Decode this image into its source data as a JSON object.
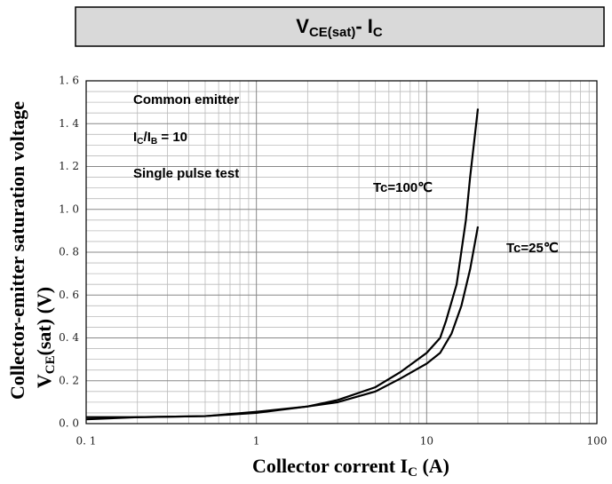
{
  "chart_data": {
    "type": "line",
    "title": [
      "V",
      "CE(sat)",
      "- I",
      "C"
    ],
    "ylabel": {
      "line1": "Collector-emitter saturation voltage",
      "line2": [
        "V",
        "CE",
        "(sat) (V)"
      ]
    },
    "xlabel": [
      "Collector corrent I",
      "C",
      " (A)"
    ],
    "annotations": [
      {
        "text": "Common emitter"
      },
      {
        "parts": [
          "I",
          "C",
          "/I",
          "B",
          " = 10"
        ]
      },
      {
        "text": "Single pulse test"
      }
    ],
    "xscale": "log",
    "xlim": [
      0.1,
      100
    ],
    "xticks": [
      {
        "value": 0.1,
        "label": "0. 1"
      },
      1,
      10,
      100
    ],
    "ylim": [
      0,
      1.6
    ],
    "yticks": [
      {
        "value": 0,
        "label": "0. 0"
      },
      {
        "value": 0.2,
        "label": "0. 2"
      },
      {
        "value": 0.4,
        "label": "0. 4"
      },
      {
        "value": 0.6,
        "label": "0. 6"
      },
      {
        "value": 0.8,
        "label": "0. 8"
      },
      {
        "value": 1.0,
        "label": "1. 0"
      },
      {
        "value": 1.2,
        "label": "1. 2"
      },
      {
        "value": 1.4,
        "label": "1. 4"
      },
      {
        "value": 1.6,
        "label": "1. 6"
      }
    ],
    "grid": true,
    "series": [
      {
        "name": "Tc=100℃",
        "color": "#000000",
        "x": [
          0.1,
          0.2,
          0.5,
          1,
          2,
          3,
          5,
          7,
          10,
          12,
          13,
          15,
          17,
          18,
          20
        ],
        "values": [
          0.02,
          0.03,
          0.035,
          0.05,
          0.08,
          0.11,
          0.17,
          0.24,
          0.33,
          0.4,
          0.48,
          0.65,
          0.95,
          1.15,
          1.47
        ]
      },
      {
        "name": "Tc=25℃",
        "color": "#000000",
        "x": [
          0.1,
          0.2,
          0.5,
          1,
          2,
          3,
          5,
          7,
          10,
          12,
          14,
          16,
          18,
          20
        ],
        "values": [
          0.03,
          0.03,
          0.035,
          0.055,
          0.08,
          0.1,
          0.15,
          0.21,
          0.28,
          0.33,
          0.42,
          0.55,
          0.72,
          0.92
        ]
      }
    ]
  }
}
